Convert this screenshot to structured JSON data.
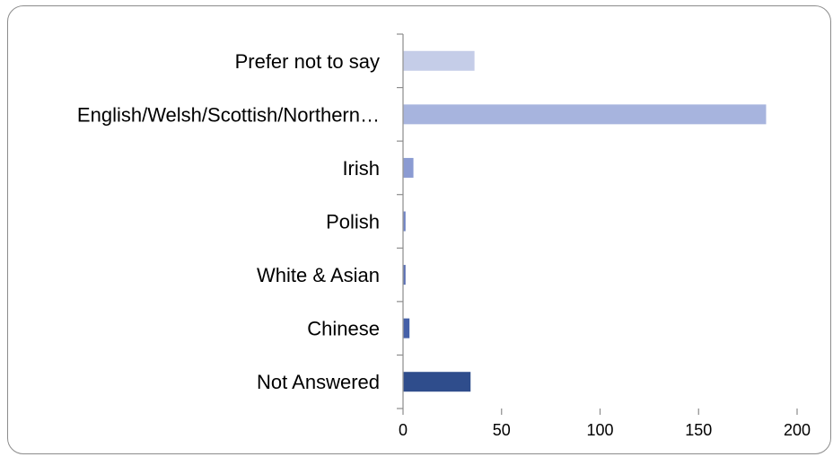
{
  "chart_data": {
    "type": "bar",
    "orientation": "horizontal",
    "title": "",
    "xlabel": "",
    "ylabel": "",
    "categories": [
      "Prefer not to say",
      "English/Welsh/Scottish/Northern…",
      "Irish",
      "Polish",
      "White & Asian",
      "Chinese",
      "Not Answered"
    ],
    "values": [
      36,
      184,
      5,
      1,
      1,
      3,
      34
    ],
    "bar_colors": [
      "#c5cde8",
      "#a7b4de",
      "#8b9bd2",
      "#6f83c5",
      "#5a6fb4",
      "#4560a8",
      "#2f4d8c"
    ],
    "xlim": [
      0,
      200
    ],
    "xticks": [
      0,
      50,
      100,
      150,
      200
    ],
    "xtick_labels": [
      "0",
      "50",
      "100",
      "150",
      "200"
    ],
    "grid": false,
    "legend": "none"
  }
}
